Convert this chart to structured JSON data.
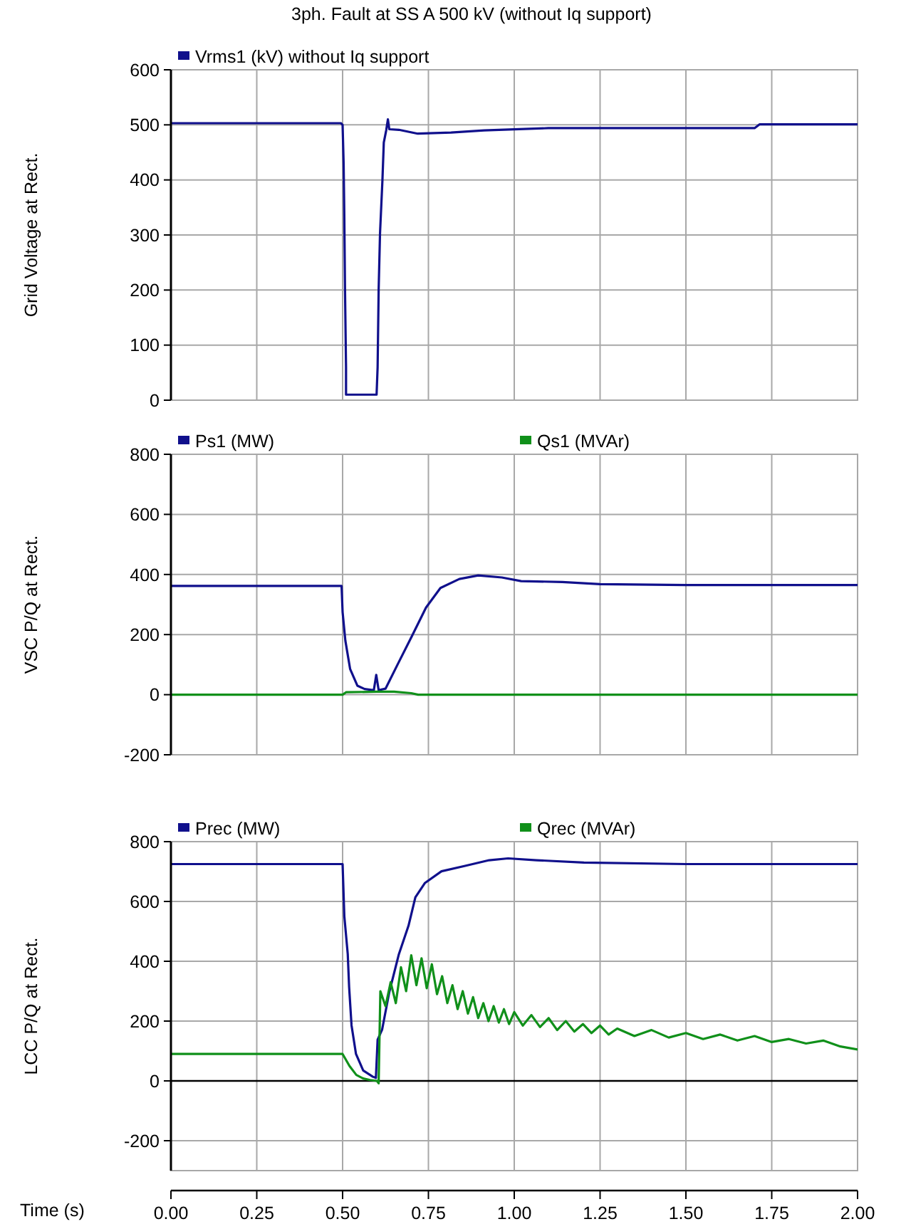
{
  "chart_data": [
    {
      "type": "line",
      "title": "3ph. Fault at SS A 500 kV (without Iq support)",
      "ylabel": "Grid Voltage at Rect.",
      "xlim": [
        0,
        2
      ],
      "xticks": [
        0,
        0.25,
        0.5,
        0.75,
        1,
        1.25,
        1.5,
        1.75,
        2
      ],
      "ylim": [
        0,
        600
      ],
      "yticks": [
        0,
        100,
        200,
        300,
        400,
        500,
        600
      ],
      "grid": true,
      "legend": "top",
      "tick_labels": "y",
      "series": [
        {
          "name": "Vrms1 (kV) without Iq support",
          "color": "#10108c",
          "x": [
            0,
            0.495,
            0.5,
            0.503,
            0.505,
            0.507,
            0.51,
            0.51,
            0.599,
            0.602,
            0.605,
            0.609,
            0.616,
            0.62,
            0.627,
            0.632,
            0.636,
            0.664,
            0.719,
            0.816,
            0.912,
            1.099,
            1.3,
            1.5,
            1.7,
            1.715,
            2
          ],
          "values": [
            503,
            503,
            500,
            430,
            334,
            202,
            60,
            10,
            10,
            60,
            200,
            303,
            399,
            468,
            490,
            510,
            492,
            491,
            484,
            486,
            490,
            494,
            494,
            494,
            494,
            501,
            501
          ]
        }
      ]
    },
    {
      "type": "line",
      "ylabel": "VSC P/Q at Rect.",
      "xlim": [
        0,
        2
      ],
      "xticks": [
        0,
        0.25,
        0.5,
        0.75,
        1,
        1.25,
        1.5,
        1.75,
        2
      ],
      "ylim": [
        -200,
        800
      ],
      "yticks": [
        -200,
        0,
        200,
        400,
        600,
        800
      ],
      "grid": true,
      "legend": "top",
      "tick_labels": "y",
      "series": [
        {
          "name": "Ps1 (MW)",
          "color": "#10108c",
          "x": [
            0,
            0.497,
            0.5,
            0.508,
            0.522,
            0.543,
            0.564,
            0.591,
            0.598,
            0.605,
            0.625,
            0.66,
            0.702,
            0.743,
            0.785,
            0.84,
            0.895,
            0.964,
            1.02,
            1.14,
            1.25,
            1.5,
            2
          ],
          "values": [
            362,
            362,
            275,
            180,
            85,
            30,
            19,
            15,
            66,
            15,
            20,
            100,
            195,
            290,
            355,
            385,
            397,
            390,
            378,
            375,
            368,
            365,
            365
          ]
        },
        {
          "name": "Qs1 (MVAr)",
          "color": "#10901a",
          "x": [
            0,
            0.5,
            0.51,
            0.6,
            0.65,
            0.7,
            0.72,
            2
          ],
          "values": [
            0,
            0,
            8,
            10,
            10,
            5,
            0,
            0
          ]
        }
      ]
    },
    {
      "type": "line",
      "ylabel": "LCC P/Q at Rect.",
      "xlabel": "Time (s)",
      "xlim": [
        0,
        2
      ],
      "xticks": [
        {
          "value": 0,
          "label": "0.00"
        },
        0.25,
        {
          "value": 0.5,
          "label": "0.50"
        },
        0.75,
        {
          "value": 1,
          "label": "1.00"
        },
        1.25,
        {
          "value": 1.5,
          "label": "1.50"
        },
        1.75,
        {
          "value": 2,
          "label": "2.00"
        }
      ],
      "ylim": [
        -300,
        800
      ],
      "yticks": [
        -200,
        0,
        200,
        400,
        600,
        800
      ],
      "grid": true,
      "legend": "top",
      "ref_lines": [
        {
          "axis": "y",
          "value": 0,
          "color": "#000000"
        }
      ],
      "series": [
        {
          "name": "Prec (MW)",
          "color": "#10108c",
          "x": [
            0,
            0.5,
            0.505,
            0.515,
            0.519,
            0.526,
            0.539,
            0.56,
            0.588,
            0.597,
            0.602,
            0.615,
            0.636,
            0.664,
            0.692,
            0.712,
            0.74,
            0.788,
            0.857,
            0.927,
            0.982,
            1.065,
            1.203,
            1.5,
            2
          ],
          "values": [
            725,
            725,
            551,
            424,
            314,
            186,
            90,
            35,
            14,
            10,
            138,
            171,
            297,
            424,
            519,
            614,
            662,
            701,
            719,
            738,
            744,
            738,
            730,
            725,
            725
          ]
        },
        {
          "name": "Qrec (MVAr)",
          "color": "#10901a",
          "x": [
            0,
            0.5,
            0.52,
            0.54,
            0.56,
            0.58,
            0.6,
            0.605,
            0.61,
            0.625,
            0.64,
            0.655,
            0.67,
            0.685,
            0.7,
            0.715,
            0.73,
            0.745,
            0.76,
            0.775,
            0.79,
            0.805,
            0.82,
            0.835,
            0.85,
            0.865,
            0.88,
            0.895,
            0.91,
            0.925,
            0.94,
            0.955,
            0.97,
            0.985,
            1,
            1.025,
            1.05,
            1.075,
            1.1,
            1.125,
            1.15,
            1.175,
            1.2,
            1.225,
            1.25,
            1.275,
            1.3,
            1.35,
            1.4,
            1.45,
            1.5,
            1.55,
            1.6,
            1.65,
            1.7,
            1.75,
            1.8,
            1.85,
            1.9,
            1.95,
            2
          ],
          "values": [
            90,
            90,
            50,
            20,
            8,
            3,
            0,
            -8,
            300,
            250,
            330,
            260,
            380,
            300,
            420,
            320,
            410,
            310,
            390,
            290,
            350,
            260,
            320,
            240,
            300,
            225,
            280,
            210,
            260,
            200,
            250,
            195,
            240,
            190,
            230,
            185,
            220,
            180,
            210,
            170,
            200,
            165,
            190,
            160,
            185,
            155,
            175,
            150,
            170,
            145,
            160,
            140,
            155,
            135,
            150,
            130,
            140,
            125,
            135,
            115,
            105
          ]
        }
      ]
    }
  ]
}
